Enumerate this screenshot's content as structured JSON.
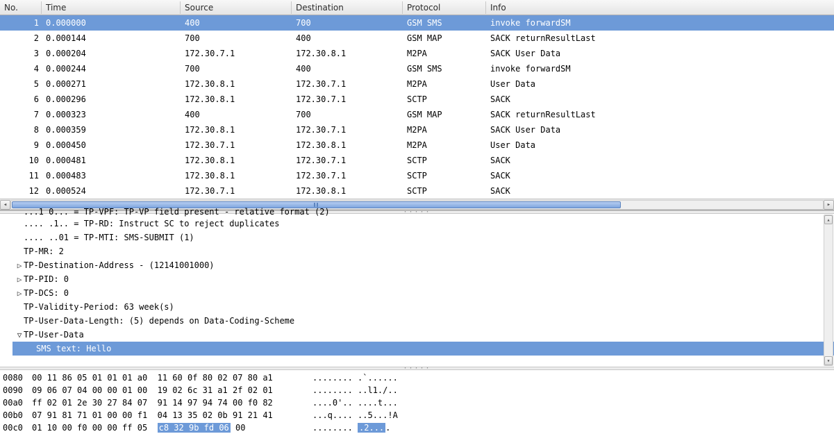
{
  "colors": {
    "selection_bg": "#6d9ad8",
    "selection_fg": "#ffffff",
    "header_grad_top": "#f8f8f8",
    "header_grad_bot": "#e4e4e4",
    "border": "#b0b0b0",
    "scroll_thumb_top": "#b6cdf0",
    "scroll_thumb_bot": "#7ea6df"
  },
  "columns": {
    "no": "No.",
    "time": "Time",
    "source": "Source",
    "destination": "Destination",
    "protocol": "Protocol",
    "info": "Info"
  },
  "packets": [
    {
      "no": "1",
      "time": "0.000000",
      "src": "400",
      "dst": "700",
      "proto": "GSM SMS",
      "info": "invoke forwardSM",
      "selected": true
    },
    {
      "no": "2",
      "time": "0.000144",
      "src": "700",
      "dst": "400",
      "proto": "GSM MAP",
      "info": "SACK returnResultLast"
    },
    {
      "no": "3",
      "time": "0.000204",
      "src": "172.30.7.1",
      "dst": "172.30.8.1",
      "proto": "M2PA",
      "info": "SACK User Data"
    },
    {
      "no": "4",
      "time": "0.000244",
      "src": "700",
      "dst": "400",
      "proto": "GSM SMS",
      "info": "invoke forwardSM"
    },
    {
      "no": "5",
      "time": "0.000271",
      "src": "172.30.8.1",
      "dst": "172.30.7.1",
      "proto": "M2PA",
      "info": "User Data"
    },
    {
      "no": "6",
      "time": "0.000296",
      "src": "172.30.8.1",
      "dst": "172.30.7.1",
      "proto": "SCTP",
      "info": "SACK"
    },
    {
      "no": "7",
      "time": "0.000323",
      "src": "400",
      "dst": "700",
      "proto": "GSM MAP",
      "info": "SACK returnResultLast"
    },
    {
      "no": "8",
      "time": "0.000359",
      "src": "172.30.8.1",
      "dst": "172.30.7.1",
      "proto": "M2PA",
      "info": "SACK User Data"
    },
    {
      "no": "9",
      "time": "0.000450",
      "src": "172.30.7.1",
      "dst": "172.30.8.1",
      "proto": "M2PA",
      "info": "User Data"
    },
    {
      "no": "10",
      "time": "0.000481",
      "src": "172.30.8.1",
      "dst": "172.30.7.1",
      "proto": "SCTP",
      "info": "SACK"
    },
    {
      "no": "11",
      "time": "0.000483",
      "src": "172.30.8.1",
      "dst": "172.30.7.1",
      "proto": "SCTP",
      "info": "SACK"
    },
    {
      "no": "12",
      "time": "0.000524",
      "src": "172.30.7.1",
      "dst": "172.30.8.1",
      "proto": "SCTP",
      "info": "SACK"
    }
  ],
  "hscroll": {
    "thumb_width_pct": 75
  },
  "tree": [
    {
      "text": "...1 0... = TP-VPF: TP-VP field present - relative format (2)",
      "arrow": "",
      "indent": 1,
      "cut": true
    },
    {
      "text": ".... .1.. = TP-RD: Instruct SC to reject duplicates",
      "arrow": "",
      "indent": 1
    },
    {
      "text": ".... ..01 = TP-MTI: SMS-SUBMIT (1)",
      "arrow": "",
      "indent": 1
    },
    {
      "text": "TP-MR: 2",
      "arrow": "",
      "indent": 1
    },
    {
      "text": "TP-Destination-Address - (12141001000)",
      "arrow": "closed",
      "indent": 1
    },
    {
      "text": "TP-PID: 0",
      "arrow": "closed",
      "indent": 1
    },
    {
      "text": "TP-DCS: 0",
      "arrow": "closed",
      "indent": 1
    },
    {
      "text": "TP-Validity-Period: 63 week(s)",
      "arrow": "",
      "indent": 1
    },
    {
      "text": "TP-User-Data-Length: (5) depends on Data-Coding-Scheme",
      "arrow": "",
      "indent": 1
    },
    {
      "text": "TP-User-Data",
      "arrow": "open",
      "indent": 1
    },
    {
      "text": "SMS text: Hello",
      "arrow": "",
      "indent": 2,
      "selected": true
    }
  ],
  "hex": [
    {
      "off": "0080",
      "b1": "00 11 86 05 01 01 01 a0",
      "b2": "11 60 0f 80 02 07 80 a1",
      "a": "........ .`......"
    },
    {
      "off": "0090",
      "b1": "09 06 07 04 00 00 01 00",
      "b2": "19 02 6c 31 a1 2f 02 01",
      "a": "........ ..l1./.."
    },
    {
      "off": "00a0",
      "b1": "ff 02 01 2e 30 27 84 07",
      "b2": "91 14 97 94 74 00 f0 82",
      "a": "....0'.. ....t..."
    },
    {
      "off": "00b0",
      "b1": "07 91 81 71 01 00 00 f1",
      "b2": "04 13 35 02 0b 91 21 41",
      "a": "...q.... ..5...!A"
    },
    {
      "off": "00c0",
      "b1": "01 10 00 f0 00 00 ff 05",
      "b2_pre": "",
      "b2_hl": "c8 32 9b fd 06",
      "b2_post": " 00",
      "a_pre": "........ ",
      "a_hl": ".2...",
      "a_post": "."
    }
  ]
}
